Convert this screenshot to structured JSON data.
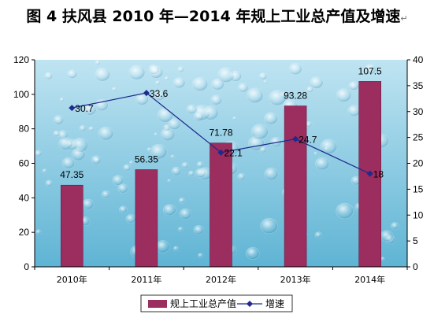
{
  "title": "图 4 扶风县 2010 年—2014 年规上工业总产值及增速",
  "title_trailing_mark": "↵",
  "colors": {
    "bar": "#9b2d5f",
    "line": "#1e2a8c",
    "plot_background_top": "#bfe4f2",
    "plot_background_bottom": "#5fb4d4"
  },
  "chart_data": {
    "type": "bar",
    "categories": [
      "2010年",
      "2011年",
      "2012年",
      "2013年",
      "2014年"
    ],
    "series": [
      {
        "name": "规上工业总产值",
        "type": "bar",
        "axis": "left",
        "values": [
          47.35,
          56.35,
          71.78,
          93.28,
          107.5
        ],
        "labels": [
          "47.35",
          "56.35",
          "71.78",
          "93.28",
          "107.5"
        ]
      },
      {
        "name": "增速",
        "type": "line",
        "axis": "right",
        "marker": "diamond",
        "values": [
          30.7,
          33.6,
          22.1,
          24.7,
          18
        ],
        "labels": [
          "30.7",
          "33.6",
          "22.1",
          "24.7",
          "18"
        ]
      }
    ],
    "y_left": {
      "min": 0,
      "max": 120,
      "ticks": [
        0,
        20,
        40,
        60,
        80,
        100,
        120
      ]
    },
    "y_right": {
      "min": 0,
      "max": 40,
      "ticks": [
        0,
        5,
        10,
        15,
        20,
        25,
        30,
        35,
        40
      ]
    },
    "legend_position": "bottom",
    "grid": false
  }
}
